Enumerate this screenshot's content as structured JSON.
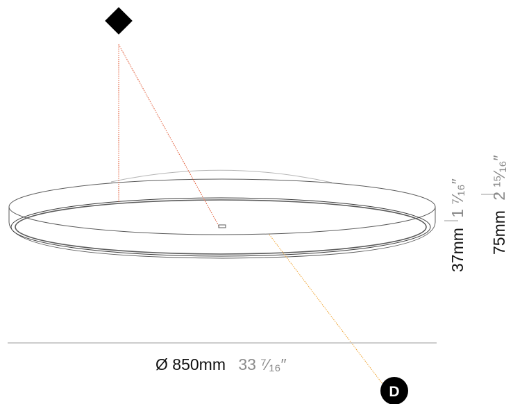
{
  "colors": {
    "outline": "#5a5a5a",
    "light_outline": "#b5b5b5",
    "dimension_line": "#9a9a9a",
    "metric_text": "#111111",
    "imperial_text": "#8a8a8a",
    "red_leader": "#e0502a",
    "orange_leader": "#f0a028",
    "marker_fill": "#000000"
  },
  "icons": {
    "top_marker": "black-diamond-icon",
    "bottom_marker": "black-circle-icon"
  },
  "dimensions": {
    "diameter": {
      "metric": "Ø 850mm",
      "imperial": "33 ⁷⁄₁₆″"
    },
    "height_small": {
      "metric": "37mm",
      "imperial": "1 ⁷⁄₁₆″"
    },
    "height_total": {
      "metric": "75mm",
      "imperial": "2 ¹⁵⁄₁₆″"
    }
  },
  "badge": {
    "label": "D"
  }
}
